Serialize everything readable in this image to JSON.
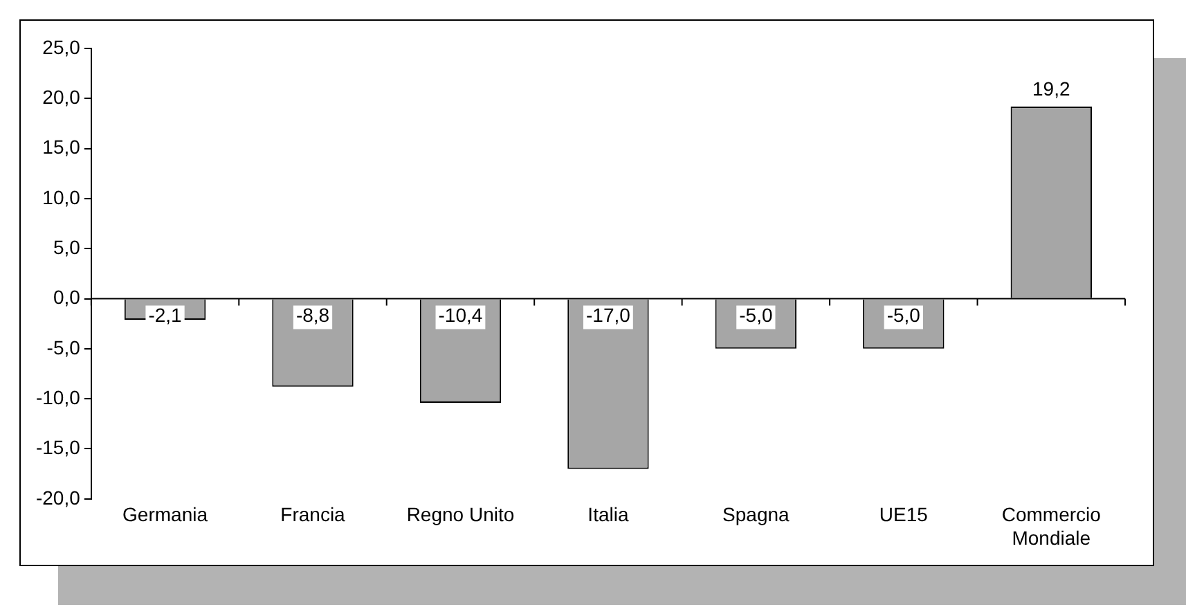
{
  "chart_data": {
    "type": "bar",
    "categories": [
      "Germania",
      "Francia",
      "Regno Unito",
      "Italia",
      "Spagna",
      "UE15",
      "Commercio Mondiale"
    ],
    "values": [
      -2.1,
      -8.8,
      -10.4,
      -17.0,
      -5.0,
      -5.0,
      19.2
    ],
    "value_labels": [
      "-2,1",
      "-8,8",
      "-10,4",
      "-17,0",
      "-5,0",
      "-5,0",
      "19,2"
    ],
    "color": "#a6a6a6",
    "ylim": [
      -20,
      25
    ],
    "yticks": [
      {
        "value": -20,
        "label": "-20,0"
      },
      {
        "value": -15,
        "label": "-15,0"
      },
      {
        "value": -10,
        "label": "-10,0"
      },
      {
        "value": -5,
        "label": "-5,0"
      },
      {
        "value": 0,
        "label": "0,0"
      },
      {
        "value": 5,
        "label": "5,0"
      },
      {
        "value": 10,
        "label": "10,0"
      },
      {
        "value": 15,
        "label": "15,0"
      },
      {
        "value": 20,
        "label": "20,0"
      },
      {
        "value": 25,
        "label": "25,0"
      }
    ],
    "legend": false
  }
}
